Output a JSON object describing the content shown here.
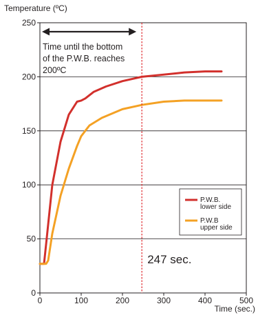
{
  "chart_data": {
    "type": "line",
    "ylabel": "Temperature (ºC)",
    "xlabel": "Time (sec.)",
    "xlim": [
      0,
      500
    ],
    "ylim": [
      0,
      250
    ],
    "xticks": [
      0,
      100,
      200,
      300,
      400,
      500
    ],
    "yticks": [
      0,
      50,
      100,
      150,
      200,
      250
    ],
    "grid": "horizontal",
    "legend_position": "lower-right",
    "series": [
      {
        "name": "P.W.B. lower side",
        "color": "#d2302c",
        "x": [
          0,
          10,
          15,
          30,
          50,
          70,
          90,
          100,
          110,
          130,
          160,
          200,
          247,
          300,
          350,
          400,
          440
        ],
        "y": [
          27,
          27,
          45,
          100,
          140,
          165,
          177,
          178,
          180,
          186,
          191,
          196,
          200,
          202,
          204,
          205,
          205
        ]
      },
      {
        "name": "P.W.B upper side",
        "color": "#f4a124",
        "x": [
          0,
          15,
          20,
          30,
          50,
          70,
          90,
          100,
          120,
          150,
          200,
          247,
          300,
          350,
          400,
          440
        ],
        "y": [
          27,
          27,
          30,
          55,
          90,
          115,
          136,
          145,
          155,
          162,
          170,
          174,
          177,
          178,
          178,
          178
        ]
      }
    ],
    "annotations": {
      "marker_x": 247,
      "marker_label": "247 sec.",
      "arrow_from": 0,
      "arrow_to": 247,
      "note_lines": [
        "Time until the bottom",
        "of the P.W.B. reaches",
        "200ºC"
      ]
    },
    "legend_labels": [
      [
        "P.W.B.",
        "lower side"
      ],
      [
        "P.W.B",
        "upper side"
      ]
    ]
  }
}
